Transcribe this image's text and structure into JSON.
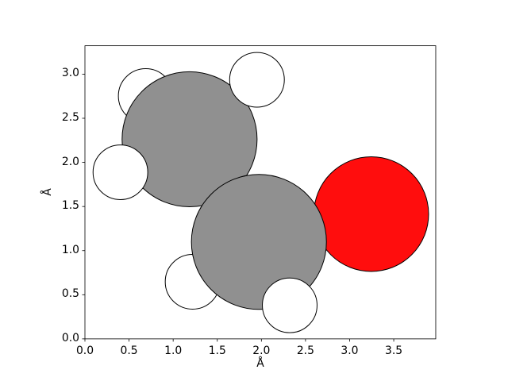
{
  "figure": {
    "background": "#ffffff",
    "kind": "matplotlib-style molecular structure plot"
  },
  "chart_data": {
    "type": "scatter",
    "title": "",
    "xlabel": "Å",
    "ylabel": "Å",
    "xlim": [
      0,
      3.976
    ],
    "ylim": [
      0,
      3.322
    ],
    "xticks": [
      0,
      0.5,
      1,
      1.5,
      2,
      2.5,
      3,
      3.5
    ],
    "xtick_labels": [
      "0.0",
      "0.5",
      "1.0",
      "1.5",
      "2.0",
      "2.5",
      "3.0",
      "3.5"
    ],
    "yticks": [
      0,
      0.5,
      1,
      1.5,
      2,
      2.5,
      3
    ],
    "ytick_labels": [
      "0.0",
      "0.5",
      "1.0",
      "1.5",
      "2.0",
      "2.5",
      "3.0"
    ],
    "grid": false,
    "legend": null,
    "description": "2D space-filling drawing of an ethanol-like molecule: two gray carbon atoms, one red oxygen atom, five visible white hydrogen atoms. Coordinates and radii in Angstrom. Atoms listed in painting order (back to front).",
    "atoms": [
      {
        "element": "H",
        "x": 0.689,
        "y": 2.752,
        "radius": 0.31,
        "color": "#ffffff"
      },
      {
        "element": "C",
        "x": 1.186,
        "y": 2.262,
        "radius": 0.765,
        "color": "#909090"
      },
      {
        "element": "H",
        "x": 1.95,
        "y": 2.936,
        "radius": 0.31,
        "color": "#ffffff"
      },
      {
        "element": "H",
        "x": 0.402,
        "y": 1.888,
        "radius": 0.31,
        "color": "#ffffff"
      },
      {
        "element": "H",
        "x": 1.22,
        "y": 0.647,
        "radius": 0.31,
        "color": "#ffffff"
      },
      {
        "element": "O",
        "x": 3.245,
        "y": 1.414,
        "radius": 0.65,
        "color": "#ff0d0d"
      },
      {
        "element": "C",
        "x": 1.972,
        "y": 1.099,
        "radius": 0.765,
        "color": "#909090"
      },
      {
        "element": "H",
        "x": 2.321,
        "y": 0.38,
        "radius": 0.31,
        "color": "#ffffff"
      }
    ],
    "colors": {
      "carbon": "#909090",
      "oxygen": "#ff0d0d",
      "hydrogen": "#ffffff",
      "edge": "#000000",
      "spine": "#000000"
    }
  }
}
